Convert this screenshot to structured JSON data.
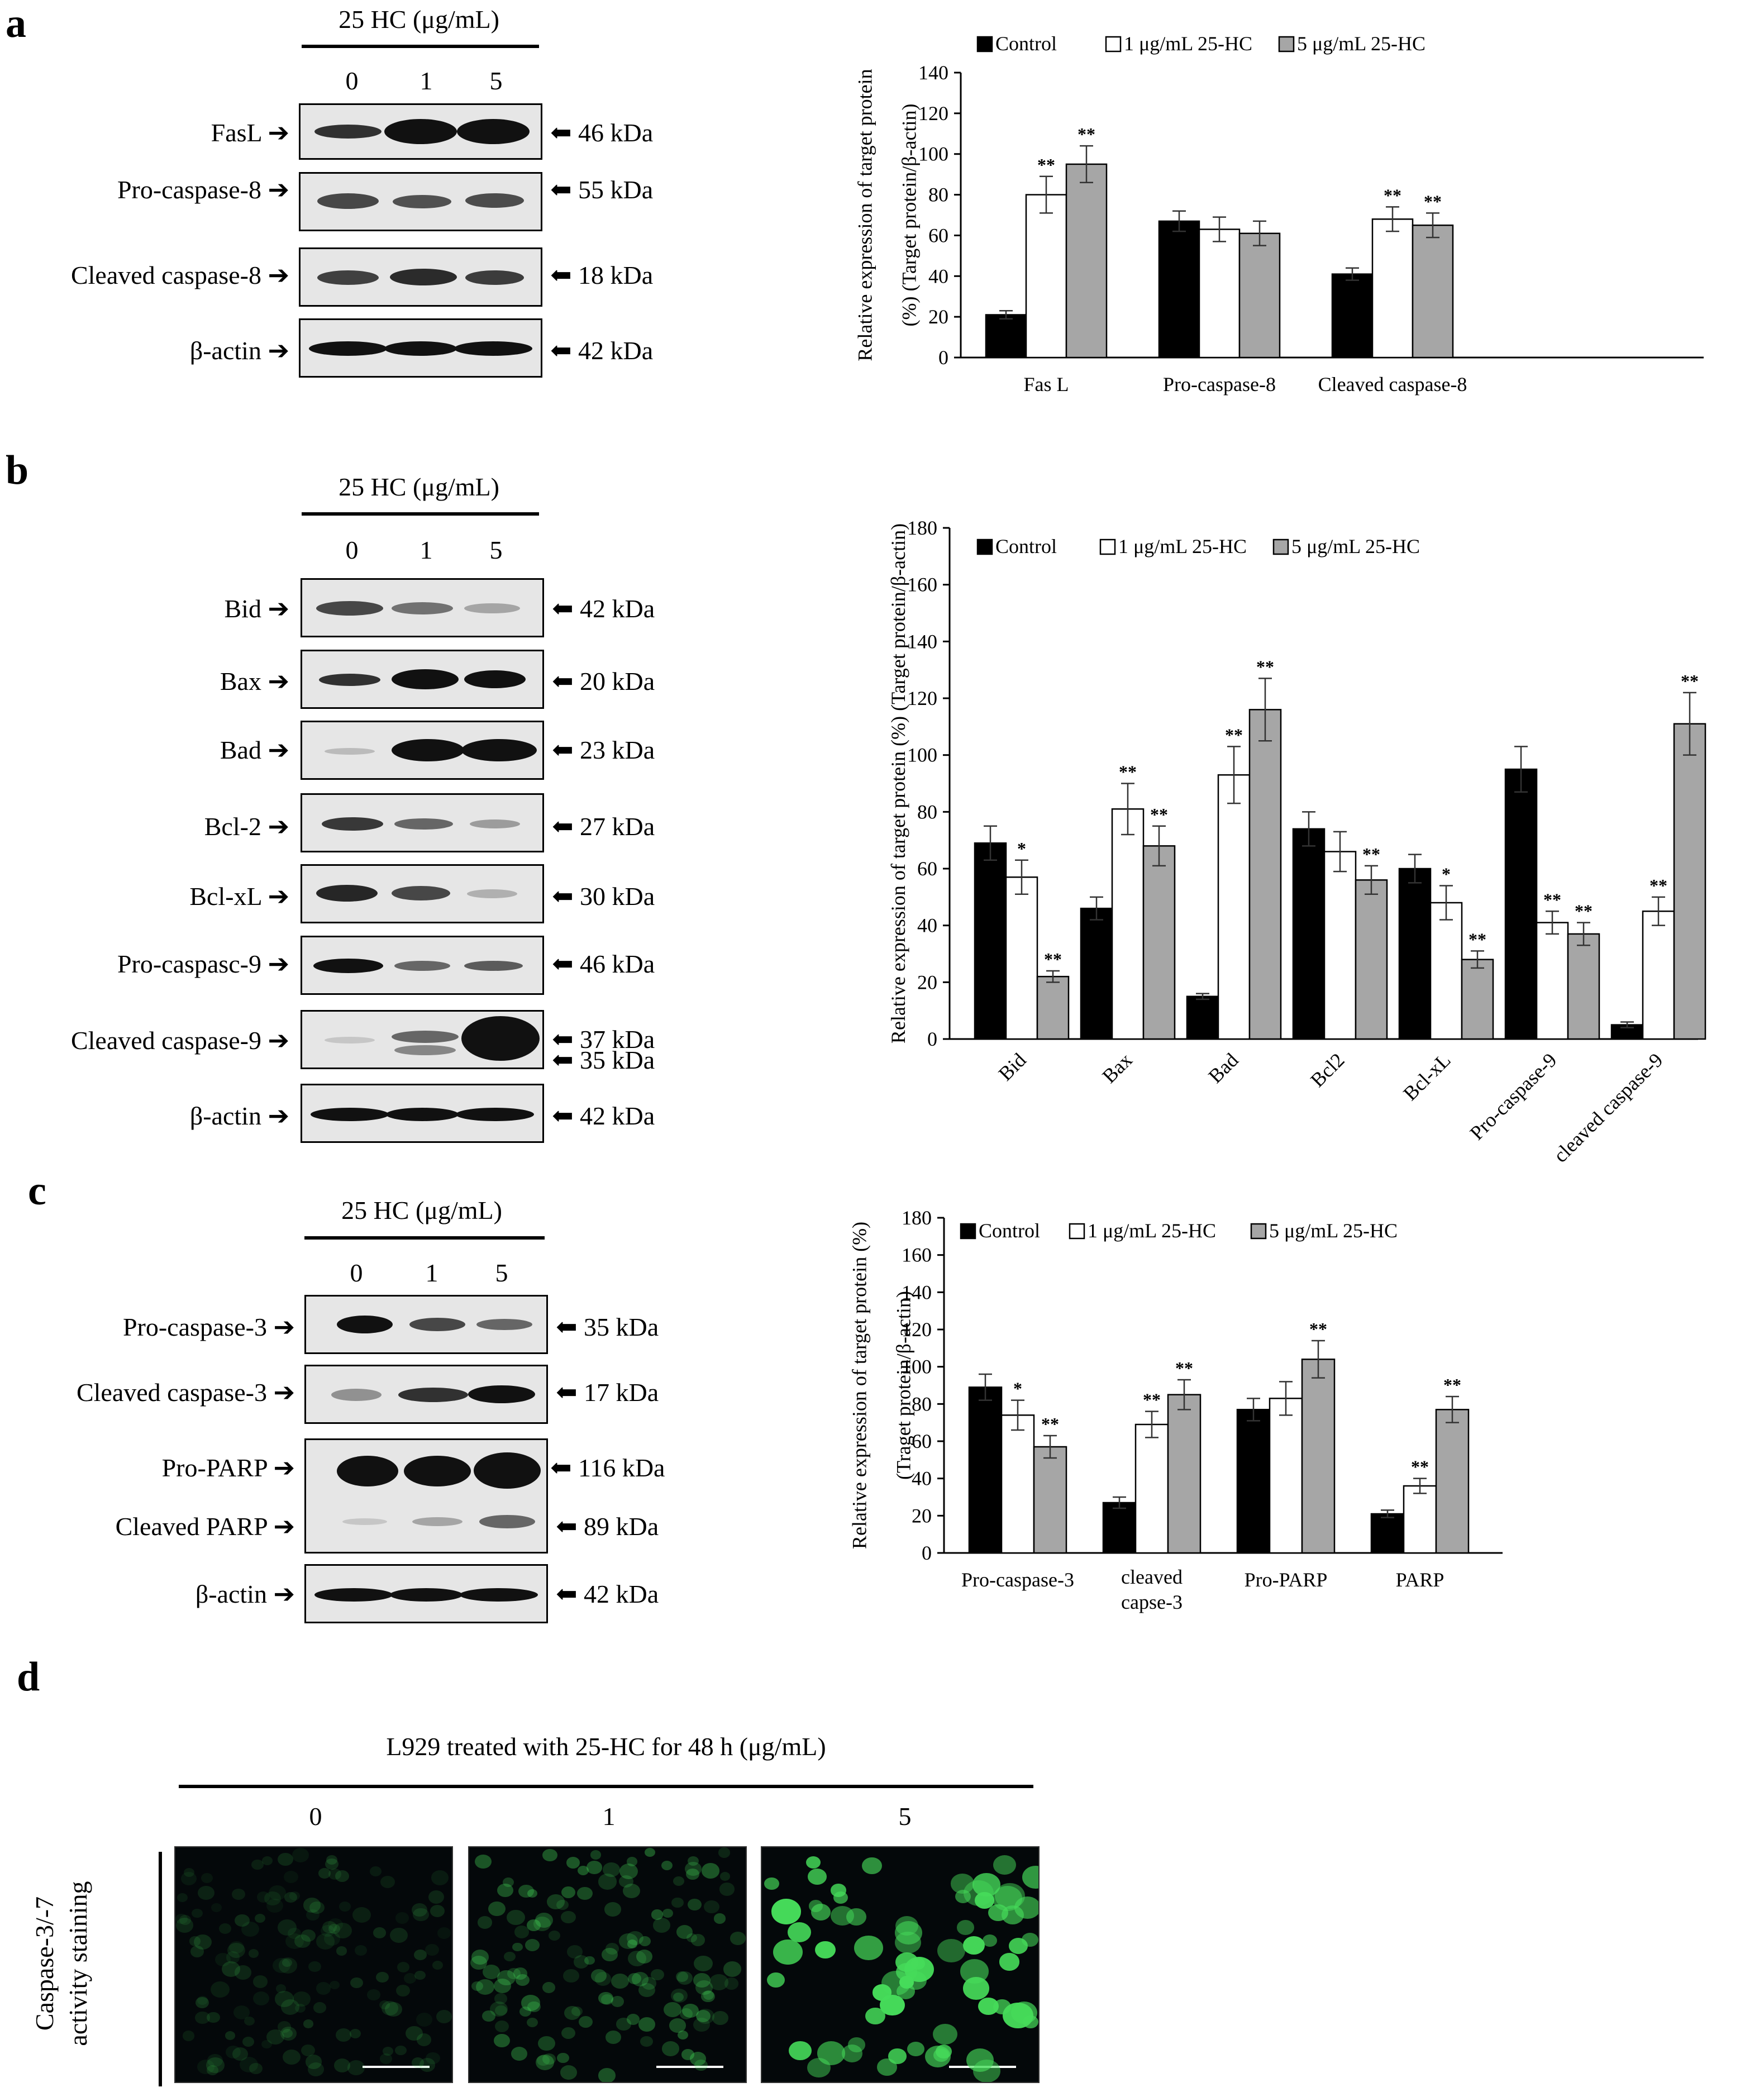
{
  "panels": {
    "a": {
      "letter": "a",
      "header": "25 HC (μg/mL)",
      "lanes": [
        "0",
        "1",
        "5"
      ],
      "blots": [
        {
          "label": "FasL",
          "kda": "46 kDa"
        },
        {
          "label": "Pro-caspase-8",
          "kda": "55 kDa"
        },
        {
          "label": "Cleaved caspase-8",
          "kda": "18 kDa"
        },
        {
          "label": "β-actin",
          "kda": "42 kDa"
        }
      ]
    },
    "b": {
      "letter": "b",
      "header": "25 HC (μg/mL)",
      "lanes": [
        "0",
        "1",
        "5"
      ],
      "blots": [
        {
          "label": "Bid",
          "kda": "42 kDa"
        },
        {
          "label": "Bax",
          "kda": "20 kDa"
        },
        {
          "label": "Bad",
          "kda": "23 kDa"
        },
        {
          "label": "Bcl-2",
          "kda": "27 kDa"
        },
        {
          "label": "Bcl-xL",
          "kda": "30 kDa"
        },
        {
          "label": "Pro-caspasc-9",
          "kda": "46 kDa"
        },
        {
          "label": "Cleaved caspase-9",
          "kda": "37 kDa",
          "kda2": "35 kDa"
        },
        {
          "label": "β-actin",
          "kda": "42 kDa"
        }
      ]
    },
    "c": {
      "letter": "c",
      "header": "25 HC (μg/mL)",
      "lanes": [
        "0",
        "1",
        "5"
      ],
      "blots": [
        {
          "label": "Pro-caspase-3",
          "kda": "35 kDa"
        },
        {
          "label": "Cleaved caspase-3",
          "kda": "17 kDa"
        },
        {
          "label": "Pro-PARP",
          "kda": "116 kDa"
        },
        {
          "label": "Cleaved PARP",
          "kda": "89 kDa"
        },
        {
          "label": "β-actin",
          "kda": "42 kDa"
        }
      ]
    },
    "d": {
      "letter": "d",
      "header": "L929 treated with 25-HC for 48 h (μg/mL)",
      "lanes": [
        "0",
        "1",
        "5"
      ],
      "side_label_1": "Caspase-3/-7",
      "side_label_2": "activity staining",
      "green_level": [
        0.12,
        0.25,
        1.0
      ]
    }
  },
  "chart_data": [
    {
      "type": "bar",
      "id": "a",
      "ylabel_1": "Relative expression of target protein",
      "ylabel_2": "(%) (Target protein/β-actin)",
      "ylim": [
        0,
        140
      ],
      "ytick_step": 20,
      "categories": [
        "Fas L",
        "Pro-caspase-8",
        "Cleaved caspase-8"
      ],
      "series": [
        {
          "name": "Control",
          "color": "#000000",
          "values": [
            21,
            67,
            41
          ],
          "errors": [
            2,
            5,
            3
          ],
          "sig": [
            "",
            "",
            ""
          ]
        },
        {
          "name": "1 μg/mL 25-HC",
          "color": "#ffffff",
          "values": [
            80,
            63,
            68
          ],
          "errors": [
            9,
            6,
            6
          ],
          "sig": [
            "**",
            "",
            "**"
          ]
        },
        {
          "name": "5 μg/mL 25-HC",
          "color": "#a6a6a6",
          "values": [
            95,
            61,
            65
          ],
          "errors": [
            9,
            6,
            6
          ],
          "sig": [
            "**",
            "",
            "**"
          ]
        }
      ],
      "legend": "top"
    },
    {
      "type": "bar",
      "id": "b",
      "ylabel_1": "Relative expression of target protein (%) (Target protein/β-actin)",
      "ylabel_2": "",
      "ylim": [
        0,
        180
      ],
      "ytick_step": 20,
      "rotate_labels": true,
      "categories": [
        "Bid",
        "Bax",
        "Bad",
        "Bcl2",
        "Bcl-xL",
        "Pro-caspase-9",
        "cleaved caspase-9"
      ],
      "series": [
        {
          "name": "Control",
          "color": "#000000",
          "values": [
            69,
            46,
            15,
            74,
            60,
            95,
            5
          ],
          "errors": [
            6,
            4,
            1,
            6,
            5,
            8,
            1
          ],
          "sig": [
            "",
            "",
            "",
            "",
            "",
            "",
            ""
          ]
        },
        {
          "name": "1 μg/mL 25-HC",
          "color": "#ffffff",
          "values": [
            57,
            81,
            93,
            66,
            48,
            41,
            45
          ],
          "errors": [
            6,
            9,
            10,
            7,
            6,
            4,
            5
          ],
          "sig": [
            "*",
            "**",
            "**",
            "",
            "*",
            "**",
            "**"
          ]
        },
        {
          "name": "5 μg/mL 25-HC",
          "color": "#a6a6a6",
          "values": [
            22,
            68,
            116,
            56,
            28,
            37,
            111
          ],
          "errors": [
            2,
            7,
            11,
            5,
            3,
            4,
            11
          ],
          "sig": [
            "**",
            "**",
            "**",
            "**",
            "**",
            "**",
            "**"
          ]
        }
      ],
      "legend": "top"
    },
    {
      "type": "bar",
      "id": "c",
      "ylabel_1": "Relative expression of target protein (%)",
      "ylabel_2": "(Traget protein/β-actin)",
      "ylim": [
        0,
        180
      ],
      "ytick_step": 20,
      "categories": [
        "Pro-caspase-3",
        "cleaved capse-3",
        "Pro-PARP",
        "PARP"
      ],
      "series": [
        {
          "name": "Control",
          "color": "#000000",
          "values": [
            89,
            27,
            77,
            21
          ],
          "errors": [
            7,
            3,
            6,
            2
          ],
          "sig": [
            "",
            "",
            "",
            ""
          ]
        },
        {
          "name": "1 μg/mL 25-HC",
          "color": "#ffffff",
          "values": [
            74,
            69,
            83,
            36
          ],
          "errors": [
            8,
            7,
            9,
            4
          ],
          "sig": [
            "*",
            "**",
            "",
            "**"
          ]
        },
        {
          "name": "5 μg/mL 25-HC",
          "color": "#a6a6a6",
          "values": [
            57,
            85,
            104,
            77
          ],
          "errors": [
            6,
            8,
            10,
            7
          ],
          "sig": [
            "**",
            "**",
            "**",
            "**"
          ]
        }
      ],
      "legend": "top"
    }
  ]
}
